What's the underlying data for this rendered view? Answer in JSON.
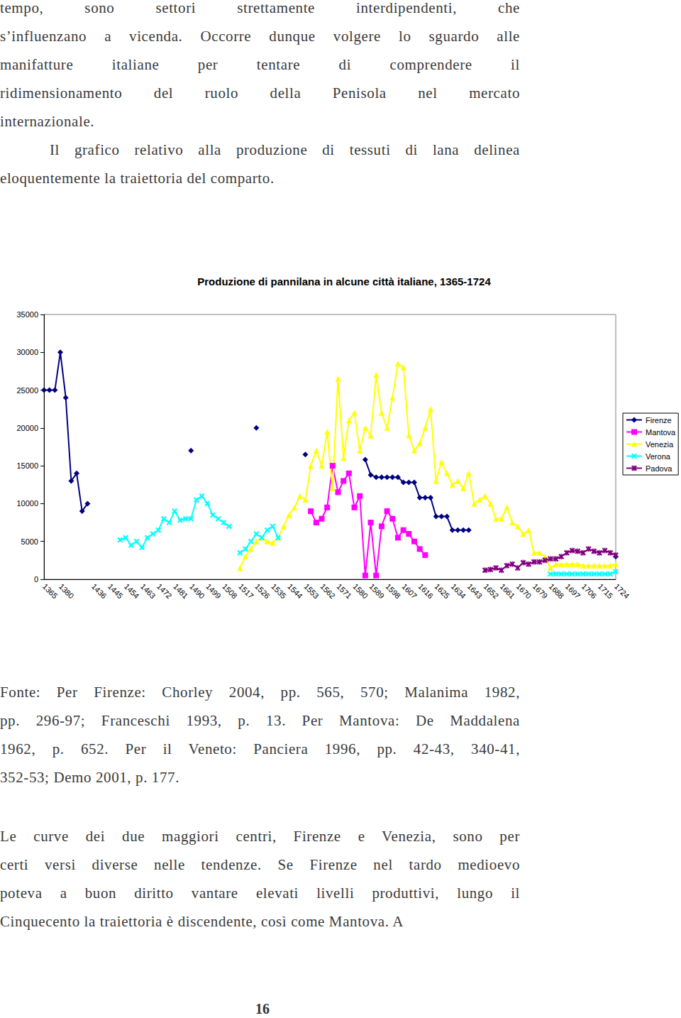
{
  "text_top": [
    [
      "tempo, sono settori strettamente interdipendenti, che",
      "s’influenzano a vicenda. Occorre dunque volgere lo sguardo alle",
      "manifatture italiane per tentare di comprendere il",
      "ridimensionamento del ruolo della Penisola nel mercato",
      "internazionale."
    ],
    [
      "Il grafico relativo alla produzione di tessuti di lana delinea",
      "eloquentemente la traiettoria del comparto."
    ]
  ],
  "chart_data": {
    "type": "line",
    "title": "Produzione di pannilana in alcune città italiane, 1365-1724",
    "categories": [
      "1365",
      null,
      null,
      "1380",
      null,
      null,
      null,
      null,
      null,
      "1436",
      null,
      null,
      "1445",
      null,
      null,
      "1454",
      null,
      null,
      "1463",
      null,
      null,
      "1472",
      null,
      null,
      "1481",
      null,
      null,
      "1490",
      null,
      null,
      "1499",
      null,
      null,
      "1508",
      null,
      null,
      "1517",
      null,
      null,
      "1526",
      null,
      null,
      "1535",
      null,
      null,
      "1544",
      null,
      null,
      "1553",
      null,
      null,
      "1562",
      null,
      null,
      "1571",
      null,
      null,
      "1580",
      null,
      null,
      "1589",
      null,
      null,
      "1598",
      null,
      null,
      "1607",
      null,
      null,
      "1616",
      null,
      null,
      "1625",
      null,
      null,
      "1634",
      null,
      null,
      "1643",
      null,
      null,
      "1652",
      null,
      null,
      "1661",
      null,
      null,
      "1670",
      null,
      null,
      "1679",
      null,
      null,
      "1688",
      null,
      null,
      "1697",
      null,
      null,
      "1706",
      null,
      null,
      "1715",
      null,
      null,
      "1724"
    ],
    "series": [
      {
        "name": "Firenze",
        "color": "#000080",
        "marker": "diamond",
        "values": [
          25000,
          25000,
          25000,
          30000,
          24000,
          13000,
          14000,
          9000,
          10000,
          null,
          null,
          null,
          null,
          null,
          null,
          null,
          null,
          null,
          null,
          null,
          null,
          null,
          null,
          null,
          null,
          null,
          null,
          17000,
          null,
          null,
          null,
          null,
          null,
          null,
          null,
          null,
          null,
          null,
          null,
          20000,
          null,
          null,
          null,
          null,
          null,
          null,
          null,
          null,
          16500,
          null,
          null,
          null,
          null,
          null,
          null,
          null,
          null,
          null,
          null,
          15800,
          13800,
          13500,
          13500,
          13500,
          13500,
          13500,
          12800,
          12800,
          12800,
          10800,
          10800,
          10800,
          8300,
          8300,
          8300,
          6500,
          6500,
          6500,
          6500,
          null,
          null,
          null,
          null,
          null,
          null,
          null,
          null,
          null,
          null,
          null,
          null,
          null,
          null,
          null,
          null,
          null,
          null,
          null,
          null,
          null,
          null,
          null,
          null,
          null,
          null,
          3000
        ]
      },
      {
        "name": "Mantova",
        "color": "#ff00ff",
        "marker": "square",
        "values": [
          null,
          null,
          null,
          null,
          null,
          null,
          null,
          null,
          null,
          null,
          null,
          null,
          null,
          null,
          null,
          null,
          null,
          null,
          null,
          null,
          null,
          null,
          null,
          null,
          null,
          null,
          null,
          null,
          null,
          null,
          null,
          null,
          null,
          null,
          null,
          null,
          null,
          null,
          null,
          null,
          null,
          null,
          null,
          null,
          null,
          null,
          null,
          null,
          null,
          9000,
          7500,
          8000,
          9500,
          15000,
          11500,
          13000,
          14000,
          9500,
          11000,
          500,
          7500,
          500,
          7000,
          9000,
          8000,
          5500,
          6500,
          6000,
          5000,
          4000,
          3200,
          null,
          null,
          null,
          null,
          null,
          null,
          null,
          null,
          null,
          null,
          null,
          null,
          null,
          null,
          null,
          null,
          null,
          null,
          null,
          null,
          null,
          null,
          null,
          null,
          null,
          null,
          null,
          null,
          null,
          null,
          null,
          null,
          null,
          null,
          null
        ]
      },
      {
        "name": "Venezia",
        "color": "#ffff00",
        "marker": "triangle",
        "values": [
          null,
          null,
          null,
          null,
          null,
          null,
          null,
          null,
          null,
          null,
          null,
          null,
          null,
          null,
          null,
          null,
          null,
          null,
          null,
          null,
          null,
          null,
          null,
          null,
          null,
          null,
          null,
          null,
          null,
          null,
          null,
          null,
          null,
          null,
          null,
          null,
          1500,
          3000,
          4000,
          5000,
          5500,
          5000,
          4800,
          5500,
          7000,
          8500,
          9500,
          11000,
          10500,
          15000,
          17000,
          15000,
          19500,
          12000,
          26500,
          16000,
          21000,
          22000,
          17000,
          20000,
          19000,
          27000,
          22000,
          20000,
          24000,
          28500,
          28000,
          19000,
          17000,
          18000,
          20000,
          22500,
          13000,
          15500,
          14000,
          12500,
          13000,
          12000,
          14000,
          10000,
          10500,
          11000,
          10000,
          8000,
          8000,
          9500,
          7500,
          7000,
          6000,
          6500,
          3500,
          3500,
          3000,
          1500,
          2000,
          2000,
          2000,
          2000,
          2000,
          1800,
          1800,
          1800,
          1800,
          1800,
          1800,
          2000
        ]
      },
      {
        "name": "Verona",
        "color": "#00ffff",
        "marker": "x",
        "values": [
          null,
          null,
          null,
          null,
          null,
          null,
          null,
          null,
          null,
          null,
          null,
          null,
          null,
          null,
          5200,
          5500,
          4500,
          5000,
          4200,
          5500,
          6000,
          6500,
          8000,
          7500,
          9000,
          7800,
          8000,
          8000,
          10500,
          11000,
          10000,
          8500,
          8000,
          7500,
          7000,
          null,
          3500,
          4000,
          5000,
          6000,
          5500,
          6500,
          7000,
          5500,
          null,
          null,
          null,
          null,
          null,
          null,
          null,
          null,
          null,
          null,
          null,
          null,
          null,
          null,
          null,
          null,
          null,
          null,
          null,
          null,
          null,
          null,
          null,
          null,
          null,
          null,
          null,
          null,
          null,
          null,
          null,
          null,
          null,
          null,
          null,
          null,
          null,
          null,
          null,
          null,
          null,
          null,
          null,
          null,
          null,
          null,
          null,
          null,
          null,
          700,
          700,
          700,
          700,
          700,
          700,
          700,
          700,
          700,
          700,
          700,
          700,
          1000
        ]
      },
      {
        "name": "Padova",
        "color": "#800080",
        "marker": "star",
        "values": [
          null,
          null,
          null,
          null,
          null,
          null,
          null,
          null,
          null,
          null,
          null,
          null,
          null,
          null,
          null,
          null,
          null,
          null,
          null,
          null,
          null,
          null,
          null,
          null,
          null,
          null,
          null,
          null,
          null,
          null,
          null,
          null,
          null,
          null,
          null,
          null,
          null,
          null,
          null,
          null,
          null,
          null,
          null,
          null,
          null,
          null,
          null,
          null,
          null,
          null,
          null,
          null,
          null,
          null,
          null,
          null,
          null,
          null,
          null,
          null,
          null,
          null,
          null,
          null,
          null,
          null,
          null,
          null,
          null,
          null,
          null,
          null,
          null,
          null,
          null,
          null,
          null,
          null,
          null,
          null,
          null,
          1200,
          1300,
          1500,
          1200,
          1800,
          2000,
          1500,
          2200,
          2000,
          2300,
          2300,
          2500,
          2700,
          2700,
          3000,
          3500,
          3800,
          3700,
          3500,
          4000,
          3700,
          3500,
          3800,
          3500,
          3200
        ]
      }
    ],
    "ylim": [
      0,
      35000
    ],
    "yticks": [
      0,
      5000,
      10000,
      15000,
      20000,
      25000,
      30000,
      35000
    ],
    "grid": false,
    "legend": "right"
  },
  "source": [
    "Fonte: Per Firenze: Chorley 2004, pp. 565, 570; Malanima 1982,",
    "pp. 296-97; Franceschi 1993, p. 13. Per Mantova: De Maddalena",
    "1962, p. 652. Per il Veneto: Panciera 1996, pp. 42-43, 340-41,",
    "352-53; Demo 2001, p. 177."
  ],
  "text_bottom": [
    "Le curve dei due maggiori centri, Firenze e Venezia, sono per",
    "certi versi diverse nelle tendenze. Se Firenze nel tardo medioevo",
    "poteva a buon diritto vantare elevati livelli produttivi, lungo il",
    "Cinquecento la traiettoria è discendente, così come Mantova. A"
  ],
  "page_number": "16"
}
